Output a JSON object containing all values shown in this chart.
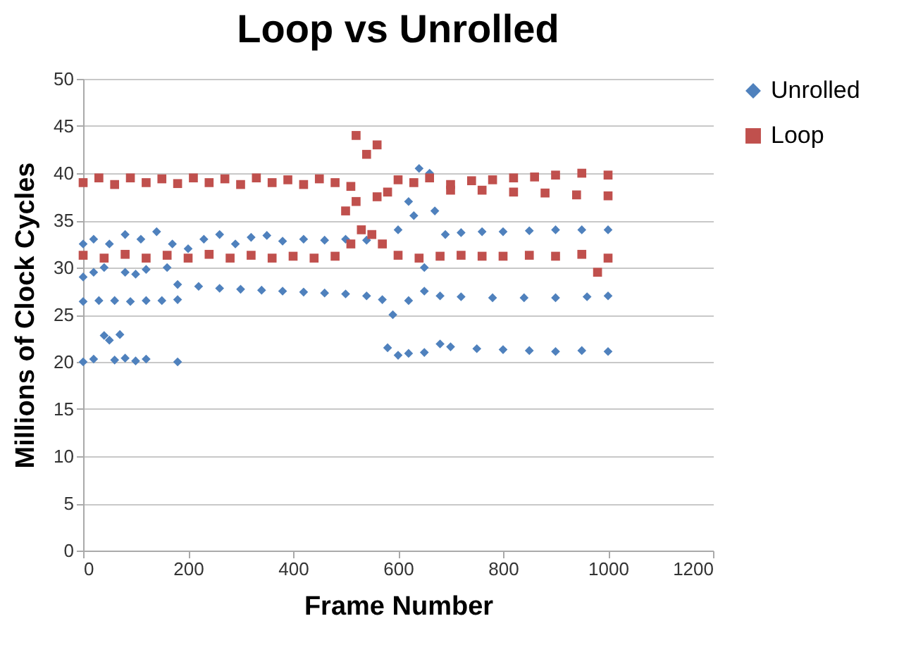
{
  "chart_data": {
    "type": "scatter",
    "title": "Loop vs Unrolled",
    "xlabel": "Frame Number",
    "ylabel": "Millions of Clock Cycles",
    "xlim": [
      0,
      1200
    ],
    "xticks": [
      0,
      200,
      400,
      600,
      800,
      1000,
      1200
    ],
    "ylim": [
      0,
      50
    ],
    "yticks": [
      0,
      5,
      10,
      15,
      20,
      25,
      30,
      35,
      40,
      45,
      50
    ],
    "grid": "y",
    "legend": "right",
    "series": [
      {
        "name": "Unrolled",
        "color": "#4f81bd",
        "marker": "diamond",
        "x": [
          0,
          20,
          40,
          60,
          80,
          100,
          120,
          180,
          50,
          70,
          580,
          600,
          620,
          650,
          680,
          700,
          750,
          800,
          850,
          900,
          950,
          1000,
          0,
          30,
          60,
          90,
          120,
          150,
          180,
          180,
          220,
          260,
          300,
          340,
          380,
          420,
          460,
          500,
          540,
          570,
          590,
          620,
          650,
          680,
          720,
          780,
          840,
          900,
          960,
          1000,
          0,
          20,
          40,
          80,
          120,
          160,
          100,
          0,
          20,
          50,
          80,
          110,
          140,
          170,
          200,
          230,
          260,
          290,
          320,
          350,
          380,
          420,
          460,
          500,
          540,
          600,
          620,
          640,
          660,
          630,
          670,
          650,
          690,
          720,
          760,
          800,
          850,
          900,
          950,
          1000
        ],
        "values": [
          20,
          20.3,
          22.8,
          20.2,
          20.4,
          20.1,
          20.3,
          20,
          22.3,
          22.9,
          21.5,
          20.7,
          20.9,
          21,
          21.9,
          21.6,
          21.4,
          21.3,
          21.2,
          21.1,
          21.2,
          21.1,
          26.4,
          26.5,
          26.5,
          26.4,
          26.5,
          26.5,
          26.6,
          28.2,
          28,
          27.8,
          27.7,
          27.6,
          27.5,
          27.4,
          27.3,
          27.2,
          27,
          26.6,
          25,
          26.5,
          27.5,
          27,
          26.9,
          26.8,
          26.8,
          26.8,
          26.9,
          27,
          29,
          29.5,
          30,
          29.5,
          29.8,
          30,
          29.3,
          32.5,
          33,
          32.5,
          33.5,
          33,
          33.8,
          32.5,
          32,
          33,
          33.5,
          32.5,
          33.2,
          33.4,
          32.8,
          33,
          32.9,
          33,
          32.9,
          34,
          37,
          40.5,
          40,
          35.5,
          36,
          30,
          33.5,
          33.7,
          33.8,
          33.8,
          33.9,
          34,
          34,
          34
        ]
      },
      {
        "name": "Loop",
        "color": "#c0504d",
        "marker": "square",
        "x": [
          0,
          30,
          60,
          90,
          120,
          150,
          180,
          210,
          240,
          270,
          300,
          330,
          360,
          390,
          420,
          450,
          480,
          510,
          520,
          540,
          560,
          500,
          520,
          560,
          580,
          600,
          630,
          660,
          700,
          740,
          780,
          820,
          860,
          900,
          950,
          1000,
          700,
          760,
          820,
          880,
          940,
          1000,
          0,
          40,
          80,
          120,
          160,
          200,
          240,
          280,
          320,
          360,
          400,
          440,
          480,
          510,
          530,
          550,
          570,
          600,
          640,
          680,
          720,
          760,
          800,
          850,
          900,
          950,
          980,
          1000
        ],
        "values": [
          39,
          39.5,
          38.8,
          39.5,
          39,
          39.4,
          38.9,
          39.5,
          39,
          39.4,
          38.8,
          39.5,
          39,
          39.3,
          38.8,
          39.4,
          39,
          38.6,
          44,
          42,
          43,
          36,
          37,
          37.5,
          38,
          39.3,
          39,
          39.5,
          38.8,
          39.2,
          39.3,
          39.5,
          39.6,
          39.8,
          40,
          39.8,
          38.2,
          38.2,
          38,
          37.9,
          37.7,
          37.6,
          31.3,
          31,
          31.4,
          31,
          31.3,
          31,
          31.4,
          31,
          31.3,
          31,
          31.2,
          31,
          31.2,
          32.5,
          34,
          33.5,
          32.5,
          31.3,
          31,
          31.2,
          31.3,
          31.2,
          31.2,
          31.3,
          31.2,
          31.4,
          29.5,
          31
        ]
      }
    ]
  }
}
